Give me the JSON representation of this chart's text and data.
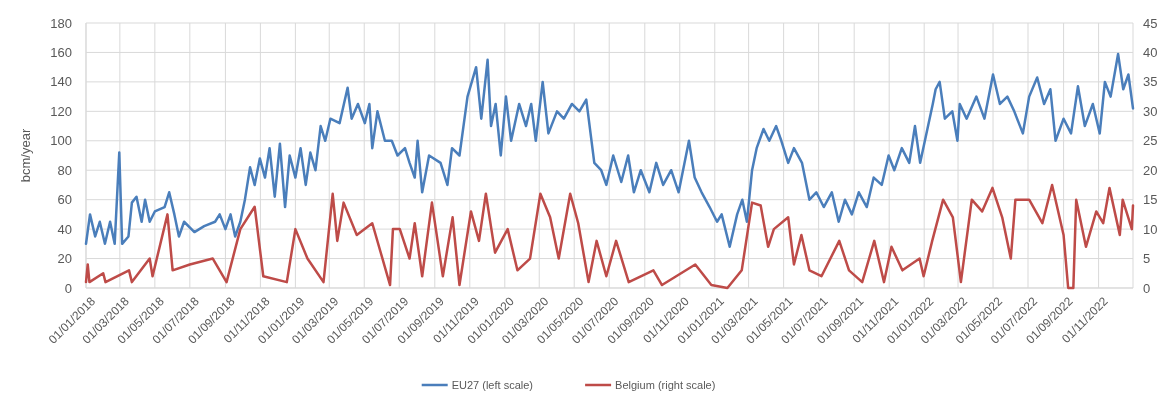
{
  "chart_data": {
    "type": "line",
    "ylabel": "bcm/year",
    "xlim": [
      "2018-01-01",
      "2022-12-31"
    ],
    "xticks": [
      {
        "value": "2018-01-01",
        "label": "01/01/2018"
      },
      {
        "value": "2018-03-01",
        "label": "01/03/2018"
      },
      {
        "value": "2018-05-01",
        "label": "01/05/2018"
      },
      {
        "value": "2018-07-01",
        "label": "01/07/2018"
      },
      {
        "value": "2018-09-01",
        "label": "01/09/2018"
      },
      {
        "value": "2018-11-01",
        "label": "01/11/2018"
      },
      {
        "value": "2019-01-01",
        "label": "01/01/2019"
      },
      {
        "value": "2019-03-01",
        "label": "01/03/2019"
      },
      {
        "value": "2019-05-01",
        "label": "01/05/2019"
      },
      {
        "value": "2019-07-01",
        "label": "01/07/2019"
      },
      {
        "value": "2019-09-01",
        "label": "01/09/2019"
      },
      {
        "value": "2019-11-01",
        "label": "01/11/2019"
      },
      {
        "value": "2020-01-01",
        "label": "01/01/2020"
      },
      {
        "value": "2020-03-01",
        "label": "01/03/2020"
      },
      {
        "value": "2020-05-01",
        "label": "01/05/2020"
      },
      {
        "value": "2020-07-01",
        "label": "01/07/2020"
      },
      {
        "value": "2020-09-01",
        "label": "01/09/2020"
      },
      {
        "value": "2020-11-01",
        "label": "01/11/2020"
      },
      {
        "value": "2021-01-01",
        "label": "01/01/2021"
      },
      {
        "value": "2021-03-01",
        "label": "01/03/2021"
      },
      {
        "value": "2021-05-01",
        "label": "01/05/2021"
      },
      {
        "value": "2021-07-01",
        "label": "01/07/2021"
      },
      {
        "value": "2021-09-01",
        "label": "01/09/2021"
      },
      {
        "value": "2021-11-01",
        "label": "01/11/2021"
      },
      {
        "value": "2022-01-01",
        "label": "01/01/2022"
      },
      {
        "value": "2022-03-01",
        "label": "01/03/2022"
      },
      {
        "value": "2022-05-01",
        "label": "01/05/2022"
      },
      {
        "value": "2022-07-01",
        "label": "01/07/2022"
      },
      {
        "value": "2022-09-01",
        "label": "01/09/2022"
      },
      {
        "value": "2022-11-01",
        "label": "01/11/2022"
      }
    ],
    "ylim": [
      0,
      180
    ],
    "yticks": [
      0,
      20,
      40,
      60,
      80,
      100,
      120,
      140,
      160,
      180
    ],
    "y2lim": [
      0,
      45
    ],
    "y2ticks": [
      0,
      5,
      10,
      15,
      20,
      25,
      30,
      35,
      40,
      45
    ],
    "grid": true,
    "legend": "bottom",
    "marker": "none",
    "line_style": "solid",
    "series": [
      {
        "name": "EU27 (left scale)",
        "color": "#4a7ebb",
        "x": [
          "2018-01-01",
          "2018-01-08",
          "2018-01-17",
          "2018-01-25",
          "2018-02-03",
          "2018-02-12",
          "2018-02-20",
          "2018-02-28",
          "2018-03-05",
          "2018-03-16",
          "2018-03-22",
          "2018-03-30",
          "2018-04-08",
          "2018-04-14",
          "2018-04-22",
          "2018-05-01",
          "2018-05-18",
          "2018-05-26",
          "2018-06-04",
          "2018-06-12",
          "2018-06-21",
          "2018-07-09",
          "2018-07-26",
          "2018-08-14",
          "2018-08-22",
          "2018-09-01",
          "2018-09-10",
          "2018-09-18",
          "2018-09-27",
          "2018-10-05",
          "2018-10-14",
          "2018-10-22",
          "2018-10-31",
          "2018-11-09",
          "2018-11-17",
          "2018-11-26",
          "2018-12-05",
          "2018-12-14",
          "2018-12-22",
          "2019-01-01",
          "2019-01-10",
          "2019-01-19",
          "2019-01-27",
          "2019-02-05",
          "2019-02-14",
          "2019-02-22",
          "2019-03-03",
          "2019-03-19",
          "2019-04-02",
          "2019-04-09",
          "2019-04-20",
          "2019-05-02",
          "2019-05-10",
          "2019-05-15",
          "2019-05-24",
          "2019-06-06",
          "2019-06-18",
          "2019-06-28",
          "2019-07-11",
          "2019-07-19",
          "2019-07-28",
          "2019-08-02",
          "2019-08-10",
          "2019-08-22",
          "2019-09-11",
          "2019-09-23",
          "2019-10-01",
          "2019-10-14",
          "2019-10-28",
          "2019-11-12",
          "2019-11-21",
          "2019-12-02",
          "2019-12-08",
          "2019-12-16",
          "2019-12-25",
          "2020-01-03",
          "2020-01-12",
          "2020-01-26",
          "2020-02-07",
          "2020-02-16",
          "2020-02-24",
          "2020-03-07",
          "2020-03-17",
          "2020-04-01",
          "2020-04-13",
          "2020-04-27",
          "2020-05-10",
          "2020-05-22",
          "2020-06-05",
          "2020-06-17",
          "2020-06-26",
          "2020-07-08",
          "2020-07-22",
          "2020-08-03",
          "2020-08-13",
          "2020-08-25",
          "2020-09-09",
          "2020-09-21",
          "2020-10-03",
          "2020-10-17",
          "2020-10-30",
          "2020-11-17",
          "2020-11-27",
          "2020-12-09",
          "2020-12-23",
          "2021-01-05",
          "2021-01-13",
          "2021-01-27",
          "2021-02-09",
          "2021-02-18",
          "2021-02-26",
          "2021-03-07",
          "2021-03-15",
          "2021-03-27",
          "2021-04-06",
          "2021-04-18",
          "2021-04-27",
          "2021-05-09",
          "2021-05-19",
          "2021-06-02",
          "2021-06-15",
          "2021-06-27",
          "2021-07-10",
          "2021-07-24",
          "2021-08-05",
          "2021-08-16",
          "2021-08-28",
          "2021-09-09",
          "2021-09-23",
          "2021-10-05",
          "2021-10-19",
          "2021-10-31",
          "2021-11-10",
          "2021-11-23",
          "2021-12-06",
          "2021-12-16",
          "2021-12-25",
          "2022-01-16",
          "2022-01-21",
          "2022-01-28",
          "2022-02-06",
          "2022-02-19",
          "2022-02-28",
          "2022-03-04",
          "2022-03-16",
          "2022-04-02",
          "2022-04-16",
          "2022-05-01",
          "2022-05-13",
          "2022-05-26",
          "2022-06-07",
          "2022-06-22",
          "2022-07-03",
          "2022-07-17",
          "2022-07-29",
          "2022-08-09",
          "2022-08-18",
          "2022-09-01",
          "2022-09-14",
          "2022-09-26",
          "2022-10-08",
          "2022-10-22",
          "2022-11-03",
          "2022-11-12",
          "2022-11-22",
          "2022-12-05",
          "2022-12-14",
          "2022-12-23",
          "2022-12-31"
        ],
        "values": [
          30,
          50,
          35,
          45,
          30,
          45,
          30,
          92,
          30,
          35,
          58,
          62,
          45,
          60,
          45,
          52,
          55,
          65,
          50,
          35,
          45,
          38,
          42,
          45,
          50,
          40,
          50,
          35,
          45,
          60,
          82,
          70,
          88,
          75,
          95,
          62,
          98,
          55,
          90,
          75,
          95,
          70,
          92,
          80,
          110,
          100,
          115,
          112,
          136,
          115,
          125,
          112,
          125,
          95,
          120,
          100,
          100,
          90,
          95,
          85,
          75,
          100,
          65,
          90,
          85,
          70,
          95,
          90,
          130,
          150,
          115,
          155,
          110,
          125,
          90,
          130,
          100,
          125,
          110,
          125,
          100,
          140,
          105,
          120,
          115,
          125,
          120,
          128,
          85,
          80,
          70,
          90,
          72,
          90,
          65,
          80,
          65,
          85,
          70,
          80,
          65,
          100,
          75,
          65,
          55,
          45,
          50,
          28,
          50,
          60,
          45,
          80,
          95,
          108,
          100,
          110,
          100,
          85,
          95,
          85,
          60,
          65,
          55,
          65,
          45,
          60,
          50,
          65,
          55,
          75,
          70,
          90,
          80,
          95,
          85,
          110,
          85,
          125,
          135,
          140,
          115,
          120,
          100,
          125,
          115,
          130,
          115,
          145,
          125,
          130,
          120,
          105,
          130,
          143,
          125,
          135,
          100,
          115,
          105,
          137,
          110,
          125,
          105,
          140,
          130,
          159,
          135,
          145,
          122
        ]
      },
      {
        "name": "Belgium (right scale)",
        "color": "#be4b48",
        "axis": "y2",
        "x": [
          "2018-01-01",
          "2018-01-04",
          "2018-01-07",
          "2018-01-31",
          "2018-02-04",
          "2018-03-17",
          "2018-03-22",
          "2018-04-22",
          "2018-04-27",
          "2018-05-23",
          "2018-06-01",
          "2018-07-01",
          "2018-08-10",
          "2018-09-03",
          "2018-09-27",
          "2018-10-22",
          "2018-11-06",
          "2018-12-17",
          "2019-01-01",
          "2019-01-22",
          "2019-02-19",
          "2019-03-07",
          "2019-03-15",
          "2019-03-26",
          "2019-04-18",
          "2019-05-15",
          "2019-06-15",
          "2019-06-20",
          "2019-07-02",
          "2019-07-19",
          "2019-07-28",
          "2019-08-10",
          "2019-08-27",
          "2019-09-15",
          "2019-10-02",
          "2019-10-14",
          "2019-11-03",
          "2019-11-17",
          "2019-11-29",
          "2019-12-15",
          "2020-01-06",
          "2020-01-23",
          "2020-02-14",
          "2020-03-03",
          "2020-03-20",
          "2020-04-04",
          "2020-04-24",
          "2020-05-08",
          "2020-05-26",
          "2020-06-09",
          "2020-06-26",
          "2020-07-13",
          "2020-08-04",
          "2020-09-16",
          "2020-10-01",
          "2020-11-28",
          "2020-12-26",
          "2021-01-23",
          "2021-02-17",
          "2021-03-07",
          "2021-03-22",
          "2021-04-04",
          "2021-04-14",
          "2021-05-09",
          "2021-05-19",
          "2021-06-01",
          "2021-06-15",
          "2021-07-06",
          "2021-08-06",
          "2021-08-23",
          "2021-09-15",
          "2021-10-06",
          "2021-10-23",
          "2021-11-05",
          "2021-11-24",
          "2021-12-24",
          "2021-12-31",
          "2022-01-15",
          "2022-02-03",
          "2022-02-20",
          "2022-03-06",
          "2022-03-25",
          "2022-04-12",
          "2022-04-30",
          "2022-05-17",
          "2022-06-01",
          "2022-06-09",
          "2022-07-03",
          "2022-07-26",
          "2022-08-12",
          "2022-09-01",
          "2022-09-09",
          "2022-09-18",
          "2022-09-23",
          "2022-10-10",
          "2022-10-28",
          "2022-11-09",
          "2022-11-20",
          "2022-12-08",
          "2022-12-13",
          "2022-12-29",
          "2022-12-31"
        ],
        "values": [
          1,
          4,
          1,
          2.5,
          1,
          3,
          1,
          5,
          2,
          12.5,
          3,
          4,
          5,
          1,
          10,
          13.8,
          2,
          1,
          10,
          5,
          1,
          16,
          8,
          14.5,
          9,
          11,
          0.5,
          10,
          10,
          5,
          11,
          2,
          14.5,
          2,
          12,
          0.5,
          13,
          8,
          16,
          6,
          10,
          3,
          5,
          16,
          12,
          5,
          16,
          11,
          1,
          8,
          2,
          8,
          1,
          3,
          0.5,
          4,
          0.5,
          0,
          3,
          14.5,
          14,
          7,
          10,
          12,
          4,
          9,
          3,
          2,
          8,
          3,
          1,
          8,
          1,
          7,
          3,
          5,
          2,
          8,
          15,
          12,
          1,
          15,
          13,
          17,
          12,
          5,
          15,
          15,
          11,
          17.5,
          9,
          0,
          0,
          15,
          7,
          13,
          11,
          17,
          9,
          15,
          10,
          14
        ]
      }
    ]
  }
}
